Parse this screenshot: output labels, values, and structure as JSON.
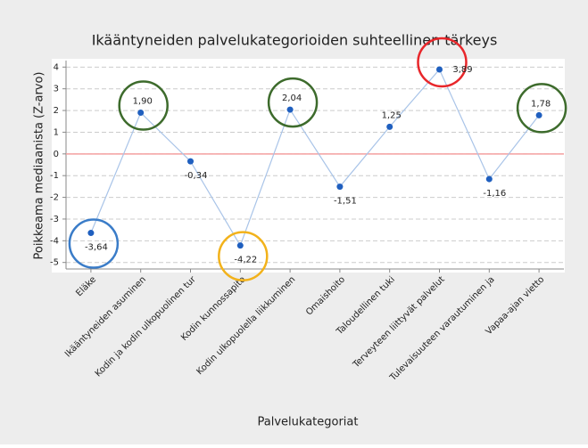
{
  "chart_data": {
    "type": "line",
    "title": "Ikääntyneiden palvelukategorioiden suhteellinen tärkeys",
    "x_label": "Palvelukategoriat",
    "y_label": "Poikkeama mediaanista (Z-arvo)",
    "categories": [
      "Eläke",
      "Ikääntyneiden asuminen",
      "Kodin ja kodin ulkopuolinen tur",
      "Kodin kunnossapito",
      "Kodin ulkopuolella liikkuminen",
      "Omaishoito",
      "Taloudellinen tuki",
      "Terveyteen liittyvät palvelut",
      "Tulevaisuuteen varautuminen ja",
      "Vapaa-ajan vietto"
    ],
    "values": [
      -3.64,
      1.9,
      -0.34,
      -4.22,
      2.04,
      -1.51,
      1.25,
      3.89,
      -1.16,
      1.78
    ],
    "value_labels": [
      "-3,64",
      "1,90",
      "-0,34",
      "-4,22",
      "2,04",
      "-1,51",
      "1,25",
      "3,89",
      "-1,16",
      "1,78"
    ],
    "color": "#1f5fbf",
    "line_color": "#a9c4e8",
    "circle_colors": [
      "#3a7cc8",
      "#3d6b2c",
      null,
      "#f2b21b",
      "#3d6b2c",
      null,
      null,
      "#e8262a",
      null,
      "#3d6b2c"
    ],
    "hline": 0,
    "hline_color": "#f4a0a0",
    "ylim": [
      -5.3,
      4.3
    ],
    "yticks": [
      -5,
      -4,
      -3,
      -2,
      -1,
      0,
      1,
      2,
      3,
      4
    ],
    "grid": true
  }
}
